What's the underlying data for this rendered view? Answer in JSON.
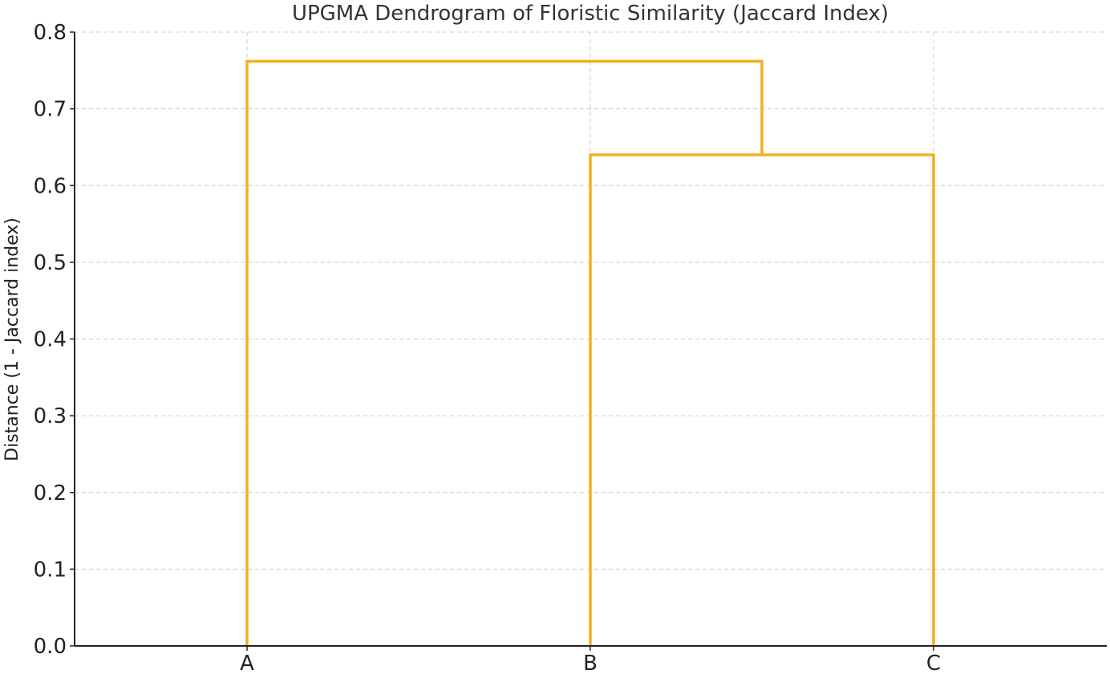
{
  "chart_data": {
    "type": "dendrogram",
    "title": "UPGMA Dendrogram of Floristic Similarity (Jaccard Index)",
    "xlabel": "",
    "ylabel": "Distance (1 - Jaccard index)",
    "leaves": [
      "A",
      "B",
      "C"
    ],
    "ylim": [
      0.0,
      0.8
    ],
    "yticks": [
      "0.0",
      "0.1",
      "0.2",
      "0.3",
      "0.4",
      "0.5",
      "0.6",
      "0.7",
      "0.8"
    ],
    "merges": [
      {
        "left": "B",
        "right": "C",
        "height": 0.64
      },
      {
        "left": "A",
        "right": "B+C",
        "height": 0.762
      }
    ],
    "link_color": "#f2b01e",
    "grid": true,
    "legend": "none"
  }
}
